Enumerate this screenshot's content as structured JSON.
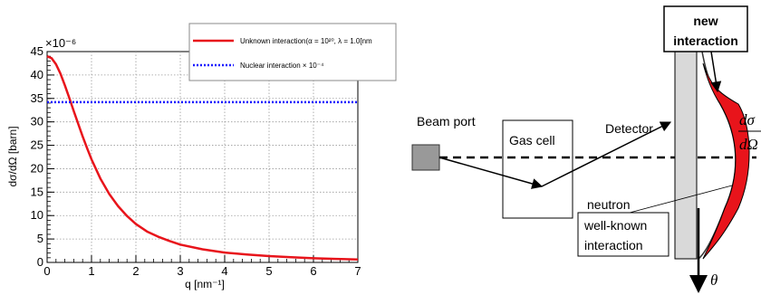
{
  "chart_data": {
    "type": "line",
    "title": "",
    "xlabel": "q [nm⁻¹]",
    "ylabel": "dσ/dΩ [barn]",
    "y_exponent_label": "×10⁻⁶",
    "xlim": [
      0,
      7
    ],
    "ylim": [
      0,
      45
    ],
    "x_ticks": [
      0,
      1,
      2,
      3,
      4,
      5,
      6,
      7
    ],
    "y_ticks": [
      0,
      5,
      10,
      15,
      20,
      25,
      30,
      35,
      40,
      45
    ],
    "grid": true,
    "legend_position": "top-right",
    "series": [
      {
        "name": "Unknown interaction(α = 10²⁰, λ = 1.0[nm",
        "color": "#e8141b",
        "style": "solid",
        "x": [
          0,
          0.1,
          0.2,
          0.3,
          0.4,
          0.5,
          0.6,
          0.7,
          0.8,
          0.9,
          1.0,
          1.2,
          1.4,
          1.6,
          1.8,
          2.0,
          2.25,
          2.5,
          2.75,
          3.0,
          3.5,
          4.0,
          4.5,
          5.0,
          5.5,
          6.0,
          6.5,
          7.0
        ],
        "y": [
          44.0,
          43.6,
          42.3,
          40.3,
          37.8,
          35.1,
          32.3,
          29.6,
          26.9,
          24.4,
          22.0,
          17.9,
          14.6,
          12.0,
          9.9,
          8.2,
          6.6,
          5.5,
          4.6,
          3.8,
          2.8,
          2.1,
          1.7,
          1.35,
          1.1,
          0.9,
          0.75,
          0.62
        ]
      },
      {
        "name": "Nuclear interaction × 10⁻⁴",
        "color": "#1a1aff",
        "style": "dotted",
        "x": [
          0,
          7
        ],
        "y": [
          34.2,
          34.2
        ]
      }
    ]
  },
  "diagram": {
    "beam_port_label": "Beam port",
    "gas_cell_label": "Gas cell",
    "detector_label": "Detector",
    "neutron_label": "neutron",
    "new_interaction_label_line1": "new",
    "new_interaction_label_line2": "interaction",
    "well_known_label_line1": "well-known",
    "well_known_label_line2": "interaction",
    "theta_label": "θ",
    "cross_section_numerator": "dσ",
    "cross_section_denominator": "dΩ"
  }
}
